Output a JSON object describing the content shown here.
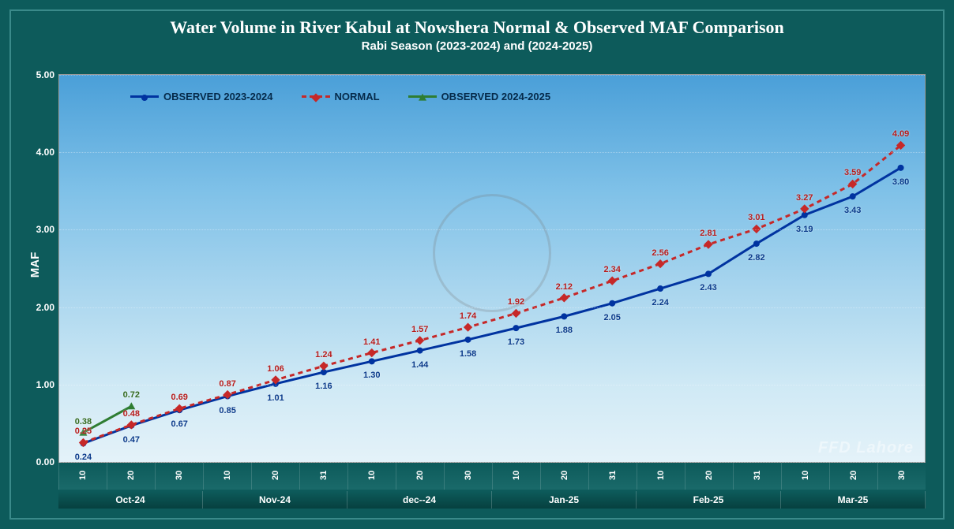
{
  "title": "Water Volume in River Kabul at Nowshera Normal & Observed MAF Comparison",
  "subtitle": "Rabi Season (2023-2024) and (2024-2025)",
  "ylabel": "MAF",
  "watermark": "FFD Lahore",
  "chart": {
    "type": "line",
    "background_gradient": [
      "#4a9fd8",
      "#e4f2f9"
    ],
    "ylim": [
      0,
      5
    ],
    "ytick_step": 1,
    "ytick_format": "0.00",
    "x_categories": [
      "10",
      "20",
      "30",
      "10",
      "20",
      "31",
      "10",
      "20",
      "30",
      "10",
      "20",
      "31",
      "10",
      "20",
      "31",
      "10",
      "20",
      "30"
    ],
    "x_groups": [
      {
        "label": "Oct-24",
        "span": 3
      },
      {
        "label": "Nov-24",
        "span": 3
      },
      {
        "label": "dec--24",
        "span": 3
      },
      {
        "label": "Jan-25",
        "span": 3
      },
      {
        "label": "Feb-25",
        "span": 3
      },
      {
        "label": "Mar-25",
        "span": 3
      }
    ],
    "series": [
      {
        "name": "OBSERVED 2023-2024",
        "color": "#0033a0",
        "label_color": "#0a3a8a",
        "marker": "circle",
        "dash": "none",
        "line_width": 3,
        "label_offset_y": 18,
        "values": [
          0.24,
          0.47,
          0.67,
          0.85,
          1.01,
          1.16,
          1.3,
          1.44,
          1.58,
          1.73,
          1.88,
          2.05,
          2.24,
          2.43,
          2.82,
          3.19,
          3.43,
          3.8
        ]
      },
      {
        "name": "NORMAL",
        "color": "#c62828",
        "label_color": "#b71c1c",
        "marker": "diamond",
        "dash": "6,5",
        "line_width": 3,
        "label_offset_y": -14,
        "values": [
          0.25,
          0.48,
          0.69,
          0.87,
          1.06,
          1.24,
          1.41,
          1.57,
          1.74,
          1.92,
          2.12,
          2.34,
          2.56,
          2.81,
          3.01,
          3.27,
          3.59,
          4.09
        ]
      },
      {
        "name": "OBSERVED 2024-2025",
        "color": "#2e7d32",
        "label_color": "#33691e",
        "marker": "triangle",
        "dash": "none",
        "line_width": 3,
        "label_offset_y": -14,
        "values": [
          0.38,
          0.72
        ]
      }
    ]
  },
  "legend": {
    "items": [
      {
        "key": "OBSERVED 2023-2024"
      },
      {
        "key": "NORMAL"
      },
      {
        "key": "OBSERVED 2024-2025"
      }
    ]
  }
}
